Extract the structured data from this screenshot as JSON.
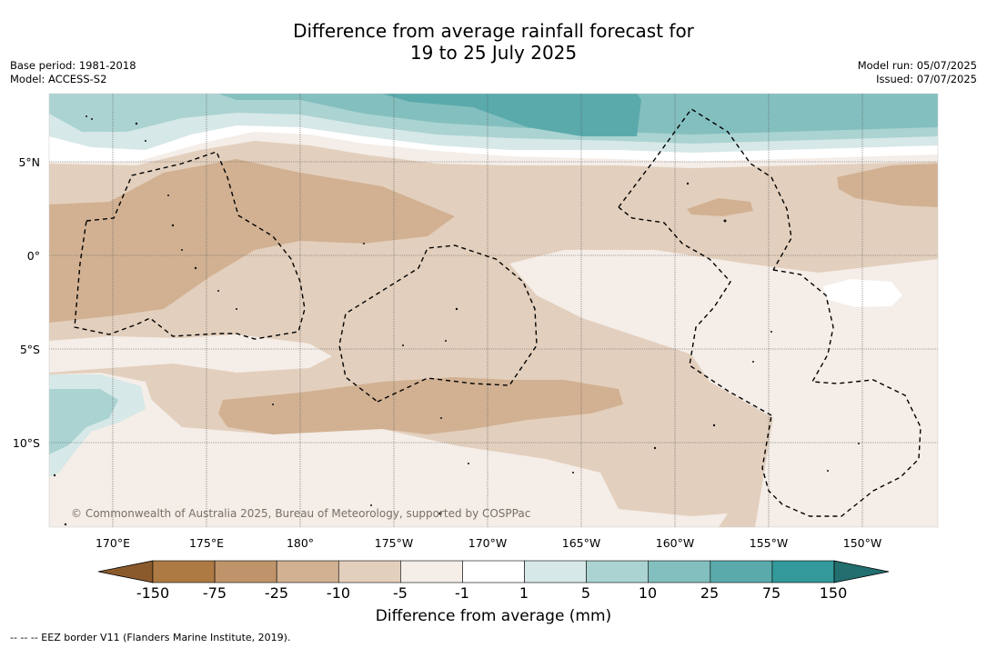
{
  "title_line1": "Difference from average rainfall forecast for",
  "title_line2": "19 to 25 July 2025",
  "base_period": "Base period: 1981-2018",
  "model": "Model: ACCESS-S2",
  "model_run": "Model run: 05/07/2025",
  "issued": "Issued: 07/07/2025",
  "credit": "© Commonwealth of Australia 2025, Bureau of Meteorology, supported by COSPPac",
  "lon_labels": [
    "170°E",
    "175°E",
    "180°",
    "175°W",
    "170°W",
    "165°W",
    "160°W",
    "155°W",
    "150°W"
  ],
  "lat_labels": [
    "5°N",
    "0°",
    "5°S",
    "10°S"
  ],
  "legend": {
    "title": "Difference from average (mm)",
    "ticks": [
      "-150",
      "-75",
      "-25",
      "-10",
      "-5",
      "-1",
      "1",
      "5",
      "10",
      "25",
      "75",
      "150"
    ],
    "colors": [
      "#8a5a2c",
      "#ad7a43",
      "#bf946a",
      "#d1b192",
      "#e3cfbd",
      "#f4ede8",
      "#ffffff",
      "#d6e8e7",
      "#aad3d2",
      "#83bfbe",
      "#5aaaab",
      "#33999a",
      "#236f70"
    ]
  },
  "footnote": "--  --  -- EEZ border V11 (Flanders Marine Institute, 2019)."
}
